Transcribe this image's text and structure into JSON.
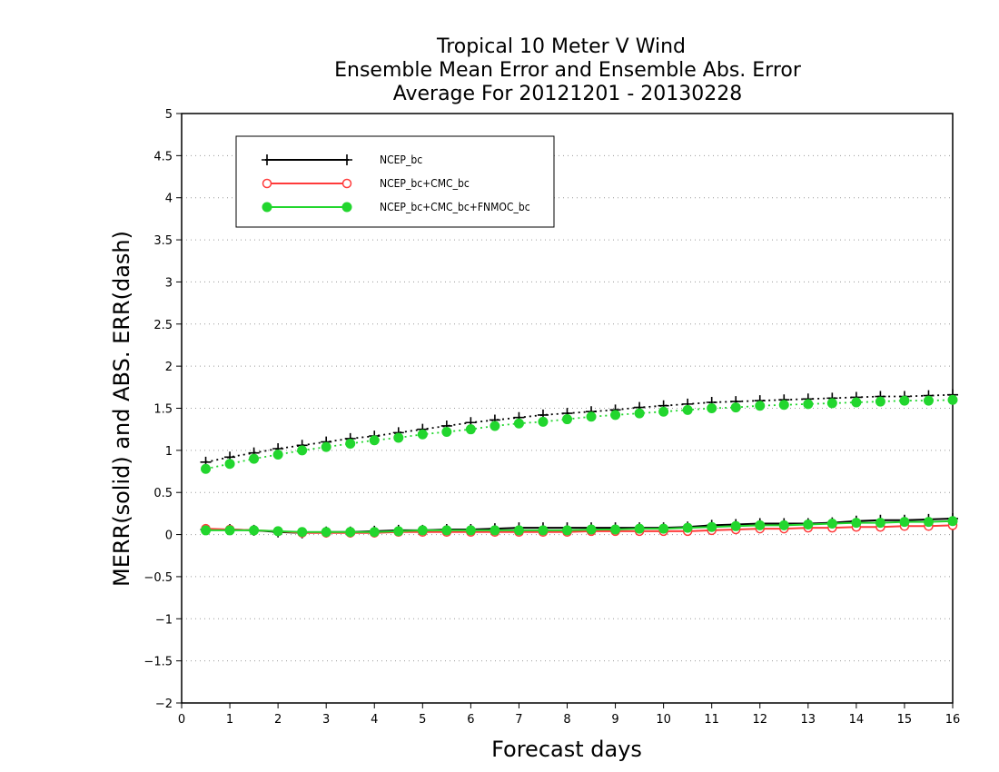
{
  "chart_data": {
    "type": "line",
    "title_lines": [
      "Tropical 10 Meter V Wind",
      "Ensemble Mean Error and Ensemble Abs. Error",
      "Average For 20121201 - 20130228"
    ],
    "xlabel": "Forecast days",
    "ylabel": "MERR(solid) and ABS. ERR(dash)",
    "xlim": [
      0,
      16
    ],
    "ylim": [
      -2,
      5
    ],
    "x_ticks": [
      0,
      1,
      2,
      3,
      4,
      5,
      6,
      7,
      8,
      9,
      10,
      11,
      12,
      13,
      14,
      15,
      16
    ],
    "y_ticks": [
      -2,
      -1.5,
      -1,
      -0.5,
      0,
      0.5,
      1,
      1.5,
      2,
      2.5,
      3,
      3.5,
      4,
      4.5,
      5
    ],
    "grid": "horizontal dotted",
    "legend_position": "top-left",
    "x": [
      0.5,
      1,
      1.5,
      2,
      2.5,
      3,
      3.5,
      4,
      4.5,
      5,
      5.5,
      6,
      6.5,
      7,
      7.5,
      8,
      8.5,
      9,
      9.5,
      10,
      10.5,
      11,
      11.5,
      12,
      12.5,
      13,
      13.5,
      14,
      14.5,
      15,
      15.5,
      16
    ],
    "series": [
      {
        "name": "NCEP_bc",
        "color": "#000000",
        "marker": "plus",
        "merr": [
          0.06,
          0.06,
          0.05,
          0.03,
          0.02,
          0.03,
          0.03,
          0.04,
          0.05,
          0.05,
          0.06,
          0.06,
          0.07,
          0.08,
          0.08,
          0.08,
          0.08,
          0.08,
          0.08,
          0.08,
          0.09,
          0.11,
          0.12,
          0.13,
          0.13,
          0.13,
          0.14,
          0.16,
          0.17,
          0.17,
          0.18,
          0.19
        ],
        "abs_err": [
          0.86,
          0.92,
          0.97,
          1.02,
          1.06,
          1.1,
          1.14,
          1.17,
          1.21,
          1.25,
          1.29,
          1.33,
          1.36,
          1.39,
          1.42,
          1.44,
          1.46,
          1.48,
          1.51,
          1.53,
          1.55,
          1.57,
          1.58,
          1.59,
          1.6,
          1.61,
          1.62,
          1.63,
          1.64,
          1.64,
          1.65,
          1.66
        ]
      },
      {
        "name": "NCEP_bc+CMC_bc",
        "color": "#ff3b3b",
        "marker": "open-circle",
        "merr": [
          0.07,
          0.06,
          0.05,
          0.04,
          0.02,
          0.02,
          0.02,
          0.02,
          0.03,
          0.03,
          0.03,
          0.03,
          0.03,
          0.03,
          0.03,
          0.03,
          0.04,
          0.04,
          0.04,
          0.04,
          0.04,
          0.05,
          0.06,
          0.07,
          0.07,
          0.08,
          0.08,
          0.09,
          0.09,
          0.1,
          0.1,
          0.11
        ]
      },
      {
        "name": "NCEP_bc+CMC_bc+FNMOC_bc",
        "color": "#22d62e",
        "marker": "filled-circle",
        "merr": [
          0.05,
          0.05,
          0.05,
          0.04,
          0.03,
          0.03,
          0.03,
          0.03,
          0.04,
          0.05,
          0.05,
          0.05,
          0.05,
          0.05,
          0.05,
          0.05,
          0.06,
          0.06,
          0.07,
          0.07,
          0.08,
          0.09,
          0.1,
          0.11,
          0.11,
          0.12,
          0.13,
          0.14,
          0.14,
          0.15,
          0.15,
          0.16
        ],
        "abs_err": [
          0.78,
          0.84,
          0.9,
          0.95,
          1.0,
          1.04,
          1.08,
          1.12,
          1.15,
          1.19,
          1.22,
          1.25,
          1.29,
          1.32,
          1.34,
          1.37,
          1.4,
          1.42,
          1.44,
          1.46,
          1.48,
          1.5,
          1.51,
          1.53,
          1.54,
          1.55,
          1.56,
          1.57,
          1.58,
          1.59,
          1.59,
          1.6
        ]
      }
    ]
  }
}
